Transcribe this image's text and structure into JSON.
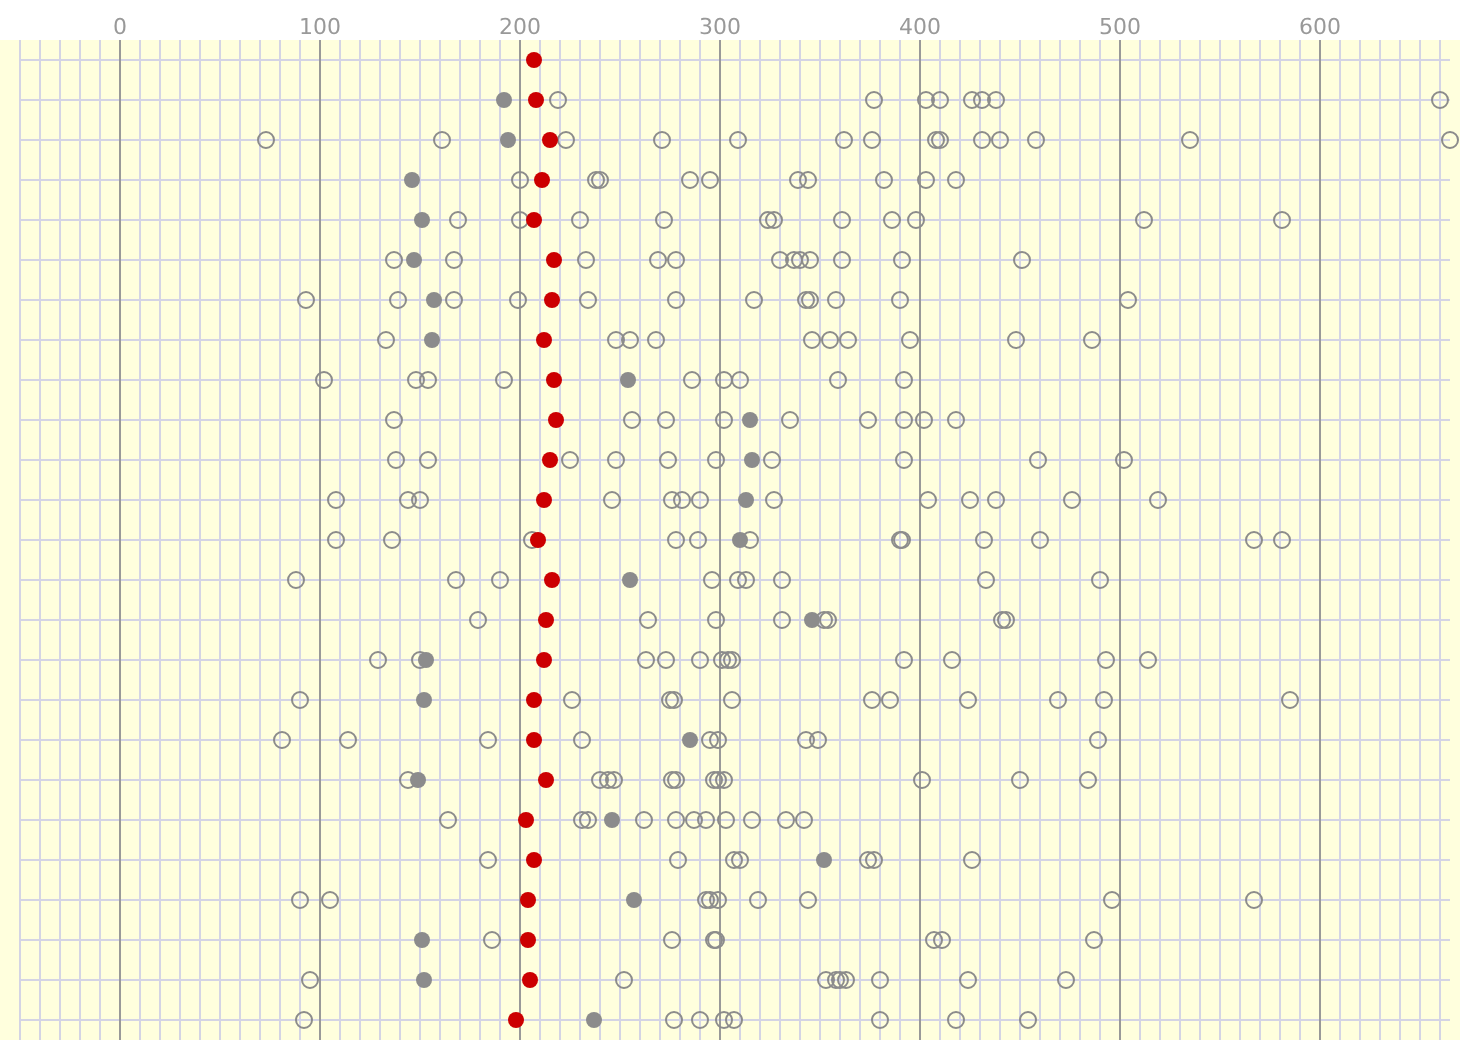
{
  "chart_data": {
    "type": "scatter",
    "orientation": "horizontal",
    "grid": true,
    "marker": "circle",
    "categories": [
      null,
      null,
      null,
      null,
      null,
      null,
      null,
      null,
      null,
      null,
      null,
      null,
      null,
      null,
      null,
      null,
      null,
      null,
      null,
      null,
      null,
      null,
      null,
      null,
      null
    ],
    "xlim": [
      -50,
      665
    ],
    "xticks": [
      0,
      100,
      200,
      300,
      400,
      500,
      600
    ],
    "series": [
      {
        "color": "#8c8c8c",
        "values": [
          null,
          219,
          73,
          200,
          169,
          137,
          93,
          133,
          102,
          137,
          138,
          108,
          108,
          88,
          179,
          129,
          90,
          81,
          144,
          164,
          184,
          90,
          186,
          95,
          92
        ]
      },
      {
        "color": "#8c8c8c",
        "values": [
          null,
          377,
          161,
          238,
          200,
          167,
          139,
          248,
          148,
          256,
          154,
          144,
          136,
          168,
          264,
          150,
          226,
          114,
          240,
          231,
          279,
          105,
          276,
          252,
          277
        ]
      },
      {
        "color": "#8c8c8c",
        "values": [
          null,
          403,
          223,
          240,
          230,
          233,
          167,
          255,
          154,
          273,
          225,
          150,
          206,
          190,
          298,
          263,
          275,
          184,
          244,
          234,
          307,
          293,
          297,
          353,
          290
        ]
      },
      {
        "color": "#8c8c8c",
        "values": [
          null,
          410,
          271,
          285,
          272,
          269,
          199,
          268,
          192,
          302,
          248,
          246,
          278,
          296,
          331,
          273,
          277,
          231,
          247,
          262,
          310,
          295,
          298,
          358,
          302
        ]
      },
      {
        "color": "#8c8c8c",
        "values": [
          null,
          426,
          309,
          295,
          324,
          278,
          234,
          346,
          286,
          335,
          274,
          276,
          289,
          309,
          352,
          290,
          306,
          295,
          276,
          278,
          374,
          299,
          407,
          360,
          307
        ]
      },
      {
        "color": "#8c8c8c",
        "values": [
          null,
          431,
          362,
          339,
          327,
          330,
          278,
          355,
          302,
          374,
          298,
          281,
          315,
          313,
          354,
          301,
          376,
          299,
          278,
          287,
          377,
          319,
          411,
          363,
          380
        ]
      },
      {
        "color": "#8c8c8c",
        "values": [
          null,
          438,
          376,
          344,
          361,
          337,
          317,
          364,
          310,
          392,
          326,
          290,
          390,
          331,
          441,
          304,
          385,
          343,
          297,
          293,
          426,
          344,
          487,
          380,
          418
        ]
      },
      {
        "color": "#8c8c8c",
        "values": [
          null,
          660,
          408,
          382,
          386,
          340,
          343,
          395,
          359,
          402,
          392,
          327,
          391,
          433,
          443,
          306,
          424,
          349,
          299,
          303,
          null,
          496,
          null,
          424,
          454
        ]
      },
      {
        "color": "#8c8c8c",
        "values": [
          null,
          null,
          410,
          403,
          398,
          345,
          345,
          448,
          392,
          418,
          459,
          404,
          432,
          490,
          null,
          392,
          469,
          489,
          302,
          316,
          null,
          567,
          null,
          473,
          null
        ]
      },
      {
        "color": "#8c8c8c",
        "values": [
          null,
          null,
          431,
          418,
          512,
          361,
          358,
          486,
          null,
          null,
          502,
          425,
          460,
          null,
          null,
          416,
          492,
          null,
          401,
          333,
          null,
          null,
          null,
          null,
          null
        ]
      },
      {
        "color": "#8c8c8c",
        "values": [
          null,
          null,
          440,
          null,
          581,
          391,
          390,
          null,
          null,
          null,
          null,
          438,
          567,
          null,
          null,
          493,
          585,
          null,
          450,
          342,
          null,
          null,
          null,
          null,
          null
        ]
      },
      {
        "color": "#8c8c8c",
        "values": [
          null,
          null,
          458,
          null,
          null,
          451,
          504,
          null,
          null,
          null,
          null,
          476,
          581,
          null,
          null,
          514,
          null,
          null,
          484,
          null,
          null,
          null,
          null,
          null,
          null
        ]
      },
      {
        "color": "#8c8c8c",
        "values": [
          null,
          null,
          535,
          null,
          null,
          null,
          null,
          null,
          null,
          null,
          null,
          519,
          null,
          null,
          null,
          null,
          null,
          null,
          null,
          null,
          null,
          null,
          null,
          null,
          null
        ]
      },
      {
        "color": "#8c8c8c",
        "values": [
          null,
          null,
          665,
          null,
          null,
          null,
          null,
          null,
          null,
          null,
          null,
          null,
          null,
          null,
          null,
          null,
          null,
          null,
          null,
          null,
          null,
          null,
          null,
          null,
          null
        ]
      },
      {
        "color": "#8c8c8c",
        "values": [
          null,
          192,
          194,
          146,
          151,
          147,
          157,
          156,
          254,
          315,
          316,
          313,
          310,
          255,
          346,
          153,
          152,
          285,
          149,
          246,
          352,
          257,
          151,
          152,
          237
        ]
      },
      {
        "color": "#cc0000",
        "values": [
          207,
          208,
          215,
          211,
          207,
          217,
          216,
          212,
          217,
          218,
          215,
          212,
          209,
          216,
          213,
          212,
          207,
          207,
          213,
          203,
          207,
          204,
          204,
          205,
          198
        ]
      }
    ]
  }
}
